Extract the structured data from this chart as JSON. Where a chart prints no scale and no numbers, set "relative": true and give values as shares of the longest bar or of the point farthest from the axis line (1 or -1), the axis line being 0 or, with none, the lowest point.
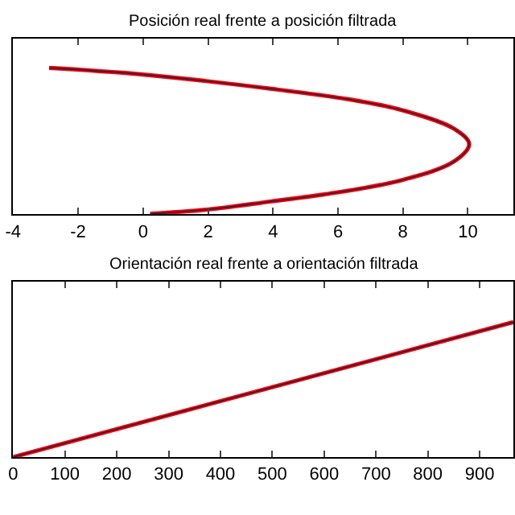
{
  "chart_data": [
    {
      "type": "line",
      "title": "Posición real frente a posición filtrada",
      "relative": true,
      "xlim": [
        -4,
        11.4
      ],
      "xticks": [
        -4,
        -2,
        0,
        2,
        4,
        6,
        8,
        10
      ],
      "tick_labels": "x",
      "series": [
        {
          "color": "#ff0000",
          "x": [
            -2.89,
            -0.07,
            3.96,
            6.37,
            7.98,
            9.59,
            10.04,
            9.59,
            7.98,
            5.57,
            3.96,
            2.02,
            0.22
          ],
          "values": [
            1,
            0.956,
            0.857,
            0.784,
            0.711,
            0.582,
            0.48,
            0.363,
            0.234,
            0.135,
            0.088,
            0.033,
            0.003
          ]
        },
        {
          "color": "#20204a",
          "x": [
            -2.89,
            -0.07,
            3.96,
            6.37,
            7.98,
            9.59,
            10.04,
            9.59,
            7.98,
            5.57,
            3.96,
            2.02,
            0.22
          ],
          "values": [
            1,
            0.956,
            0.857,
            0.784,
            0.711,
            0.582,
            0.48,
            0.363,
            0.234,
            0.135,
            0.088,
            0.033,
            0.003
          ]
        }
      ]
    },
    {
      "type": "line",
      "title": "Orientación real frente a orientación filtrada",
      "relative": true,
      "xlim": [
        0,
        965
      ],
      "xticks": [
        0,
        100,
        200,
        300,
        400,
        500,
        600,
        700,
        800,
        900
      ],
      "tick_labels": "x",
      "series": [
        {
          "color": "#ff0000",
          "x": [
            0,
            965
          ],
          "values": [
            0,
            1
          ]
        },
        {
          "color": "#20204a",
          "x": [
            0,
            965
          ],
          "values": [
            0,
            1
          ]
        }
      ]
    }
  ]
}
